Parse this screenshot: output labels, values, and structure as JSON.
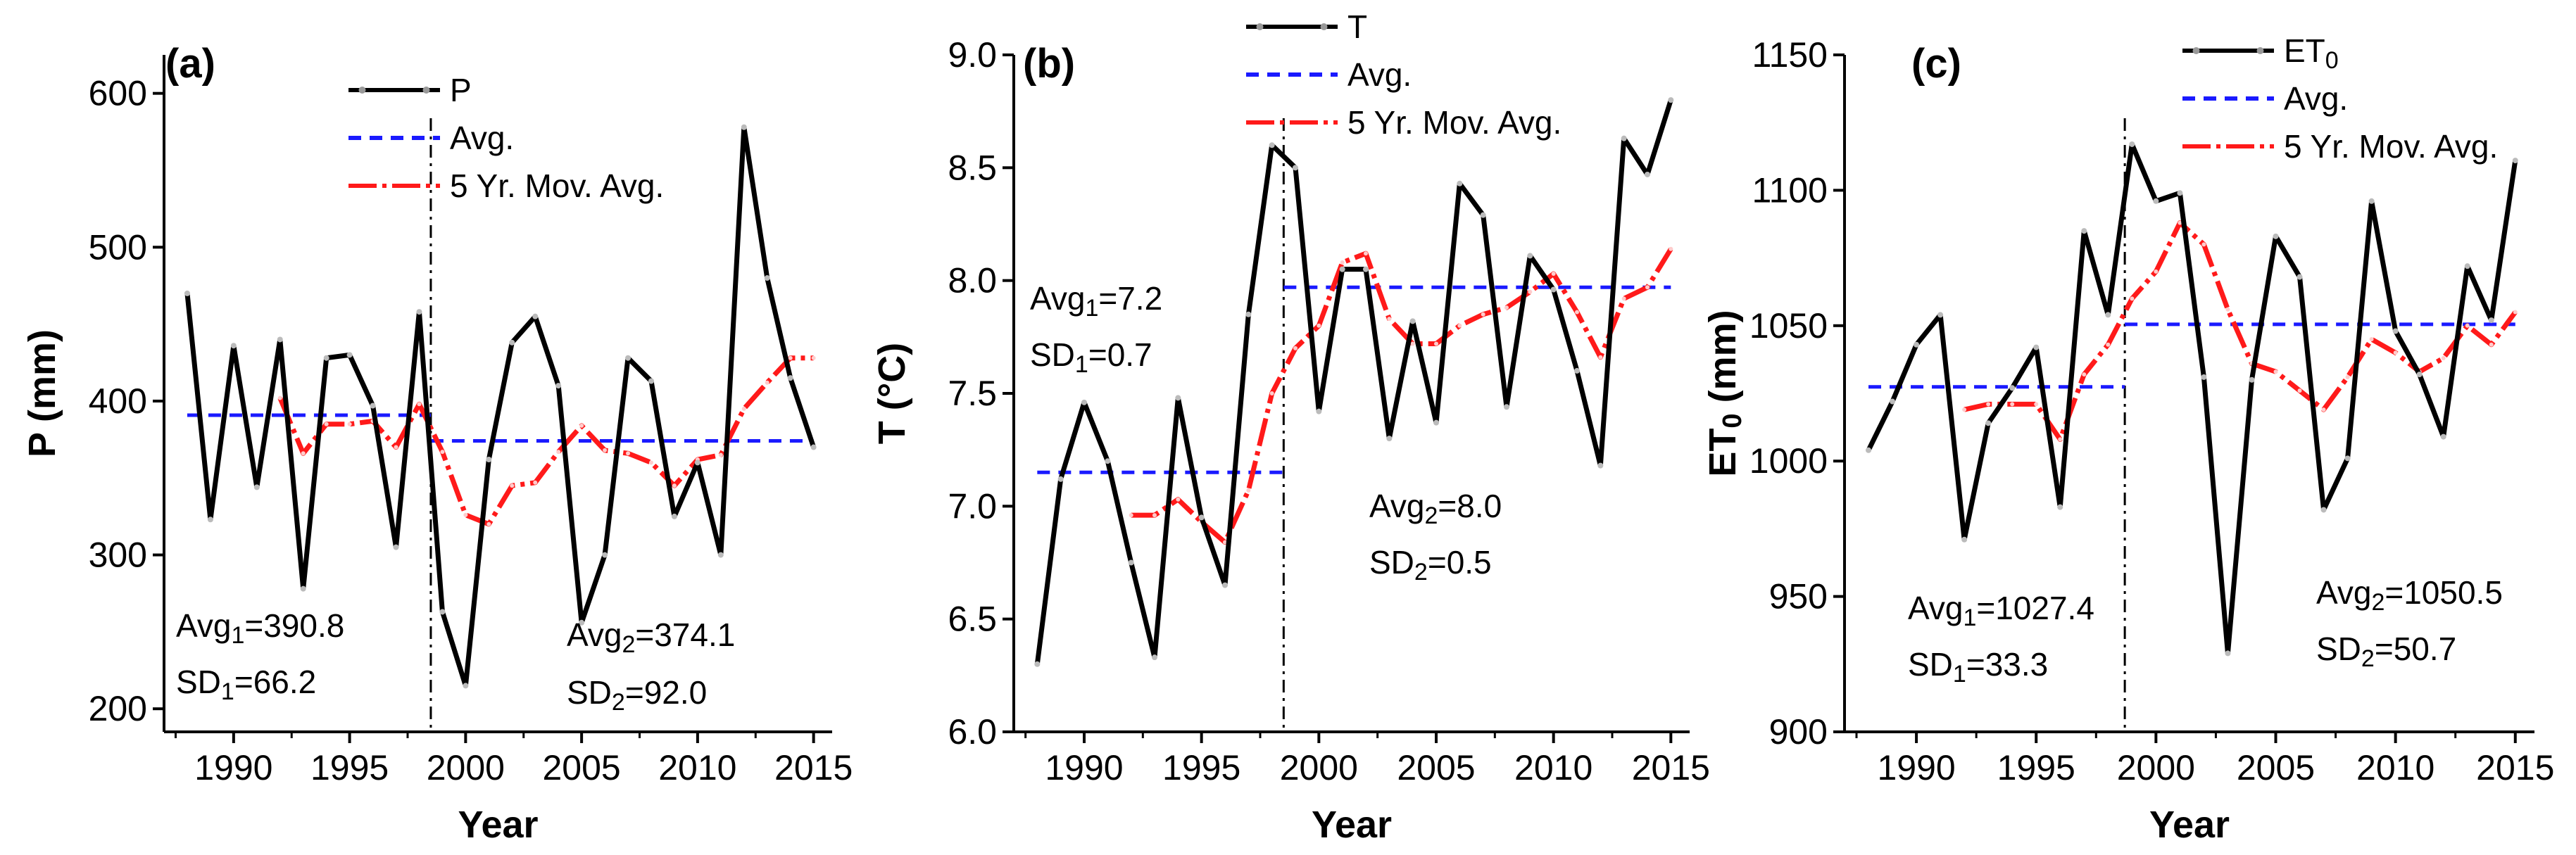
{
  "chart_data": [
    {
      "type": "line",
      "panel_label": "(a)",
      "xlabel": "Year",
      "ylabel": "P (mm)",
      "xlim": [
        1987,
        2015.8
      ],
      "ylim": [
        185,
        625
      ],
      "xticks": [
        1990,
        1995,
        2000,
        2005,
        2010,
        2015
      ],
      "yticks": [
        200,
        300,
        400,
        500,
        600
      ],
      "change_year": 1998.5,
      "legend": [
        "P",
        "Avg.",
        "5 Yr. Mov. Avg."
      ],
      "series": [
        {
          "name": "P",
          "x": [
            1988,
            1989,
            1990,
            1991,
            1992,
            1993,
            1994,
            1995,
            1996,
            1997,
            1998,
            1999,
            2000,
            2001,
            2002,
            2003,
            2004,
            2005,
            2006,
            2007,
            2008,
            2009,
            2010,
            2011,
            2012,
            2013,
            2014,
            2015
          ],
          "values": [
            470,
            323,
            436,
            344,
            440,
            278,
            428,
            430,
            397,
            305,
            458,
            263,
            215,
            362,
            438,
            455,
            410,
            256,
            300,
            428,
            413,
            325,
            360,
            300,
            578,
            480,
            415,
            370
          ]
        },
        {
          "name": "Avg.",
          "segments": [
            {
              "x": [
                1988,
                1998.5
              ],
              "value": 390.8
            },
            {
              "x": [
                1998.5,
                2015
              ],
              "value": 374.1
            }
          ]
        },
        {
          "name": "5 Yr. Mov. Avg.",
          "x": [
            1992,
            1993,
            1994,
            1995,
            1996,
            1997,
            1998,
            1999,
            2000,
            2001,
            2002,
            2003,
            2004,
            2005,
            2006,
            2007,
            2008,
            2009,
            2010,
            2011,
            2012,
            2013,
            2014,
            2015
          ],
          "values": [
            402,
            366,
            385,
            385,
            387,
            370,
            398,
            367,
            326,
            320,
            345,
            347,
            367,
            384,
            368,
            366,
            360,
            345,
            362,
            365,
            395,
            412,
            428,
            428
          ]
        }
      ],
      "annotations": [
        {
          "base": "Avg",
          "sub": "1",
          "value": "=390.8"
        },
        {
          "base": "SD",
          "sub": "1",
          "value": "=66.2"
        },
        {
          "base": "Avg",
          "sub": "2",
          "value": "=374.1"
        },
        {
          "base": "SD",
          "sub": "2",
          "value": "=92.0"
        }
      ]
    },
    {
      "type": "line",
      "panel_label": "(b)",
      "xlabel": "Year",
      "ylabel": "T (°C)",
      "xlim": [
        1987,
        2015.8
      ],
      "ylim": [
        6.0,
        9.0
      ],
      "xticks": [
        1990,
        1995,
        2000,
        2005,
        2010,
        2015
      ],
      "yticks": [
        6.0,
        6.5,
        7.0,
        7.5,
        8.0,
        8.5,
        9.0
      ],
      "change_year": 1998.5,
      "legend": [
        "T",
        "Avg.",
        "5 Yr. Mov. Avg."
      ],
      "series": [
        {
          "name": "T",
          "x": [
            1988,
            1989,
            1990,
            1991,
            1992,
            1993,
            1994,
            1995,
            1996,
            1997,
            1998,
            1999,
            2000,
            2001,
            2002,
            2003,
            2004,
            2005,
            2006,
            2007,
            2008,
            2009,
            2010,
            2011,
            2012,
            2013,
            2014,
            2015
          ],
          "values": [
            6.3,
            7.12,
            7.46,
            7.2,
            6.75,
            6.33,
            7.48,
            6.95,
            6.65,
            7.85,
            8.6,
            8.5,
            7.42,
            8.05,
            8.05,
            7.3,
            7.82,
            7.37,
            8.43,
            8.29,
            7.44,
            8.11,
            7.96,
            7.6,
            7.18,
            8.63,
            8.47,
            8.8
          ]
        },
        {
          "name": "Avg.",
          "segments": [
            {
              "x": [
                1988,
                1998.5
              ],
              "value": 7.15
            },
            {
              "x": [
                1998.5,
                2015
              ],
              "value": 7.97
            }
          ]
        },
        {
          "name": "5 Yr. Mov. Avg.",
          "x": [
            1992,
            1993,
            1994,
            1995,
            1996,
            1997,
            1998,
            1999,
            2000,
            2001,
            2002,
            2003,
            2004,
            2005,
            2006,
            2007,
            2008,
            2009,
            2010,
            2011,
            2012,
            2013,
            2014,
            2015
          ],
          "values": [
            6.96,
            6.96,
            7.03,
            6.93,
            6.84,
            7.07,
            7.5,
            7.7,
            7.8,
            8.08,
            8.12,
            7.83,
            7.72,
            7.72,
            7.8,
            7.85,
            7.88,
            7.95,
            8.03,
            7.86,
            7.66,
            7.92,
            7.97,
            8.14
          ]
        }
      ],
      "annotations": [
        {
          "base": "Avg",
          "sub": "1",
          "value": "=7.2"
        },
        {
          "base": "SD",
          "sub": "1",
          "value": "=0.7"
        },
        {
          "base": "Avg",
          "sub": "2",
          "value": "=8.0"
        },
        {
          "base": "SD",
          "sub": "2",
          "value": "=0.5"
        }
      ]
    },
    {
      "type": "line",
      "panel_label": "(c)",
      "xlabel": "Year",
      "ylabel_base": "ET",
      "ylabel_sub": "0",
      "ylabel_rest": " (mm)",
      "xlim": [
        1987,
        2015.8
      ],
      "ylim": [
        900,
        1150
      ],
      "xticks": [
        1990,
        1995,
        2000,
        2005,
        2010,
        2015
      ],
      "yticks": [
        900,
        950,
        1000,
        1050,
        1100,
        1150
      ],
      "change_year": 1998.7,
      "legend": [
        "ET0",
        "Avg.",
        "5 Yr. Mov. Avg."
      ],
      "series": [
        {
          "name": "ET0",
          "x": [
            1988,
            1989,
            1990,
            1991,
            1992,
            1993,
            1994,
            1995,
            1996,
            1997,
            1998,
            1999,
            2000,
            2001,
            2002,
            2003,
            2004,
            2005,
            2006,
            2007,
            2008,
            2009,
            2010,
            2011,
            2012,
            2013,
            2014,
            2015
          ],
          "values": [
            1004,
            1022,
            1043,
            1054,
            971,
            1014,
            1027,
            1042,
            983,
            1085,
            1054,
            1117,
            1096,
            1099,
            1031,
            929,
            1030,
            1083,
            1068,
            982,
            1001,
            1096,
            1048,
            1032,
            1009,
            1072,
            1052,
            1111
          ]
        },
        {
          "name": "Avg.",
          "segments": [
            {
              "x": [
                1988,
                1998.7
              ],
              "value": 1027.4
            },
            {
              "x": [
                1998.7,
                2015
              ],
              "value": 1050.5
            }
          ]
        },
        {
          "name": "5 Yr. Mov. Avg.",
          "x": [
            1992,
            1993,
            1994,
            1995,
            1996,
            1997,
            1998,
            1999,
            2000,
            2001,
            2002,
            2003,
            2004,
            2005,
            2006,
            2007,
            2008,
            2009,
            2010,
            2011,
            2012,
            2013,
            2014,
            2015
          ],
          "values": [
            1019,
            1021,
            1021,
            1021,
            1008,
            1032,
            1043,
            1060,
            1070,
            1088,
            1080,
            1056,
            1036,
            1033,
            1026,
            1019,
            1031,
            1045,
            1040,
            1033,
            1038,
            1050,
            1043,
            1055
          ]
        }
      ],
      "annotations": [
        {
          "base": "Avg",
          "sub": "1",
          "value": "=1027.4"
        },
        {
          "base": "SD",
          "sub": "1",
          "value": "=33.3"
        },
        {
          "base": "Avg",
          "sub": "2",
          "value": "=1050.5"
        },
        {
          "base": "SD",
          "sub": "2",
          "value": "=50.7"
        }
      ]
    }
  ]
}
